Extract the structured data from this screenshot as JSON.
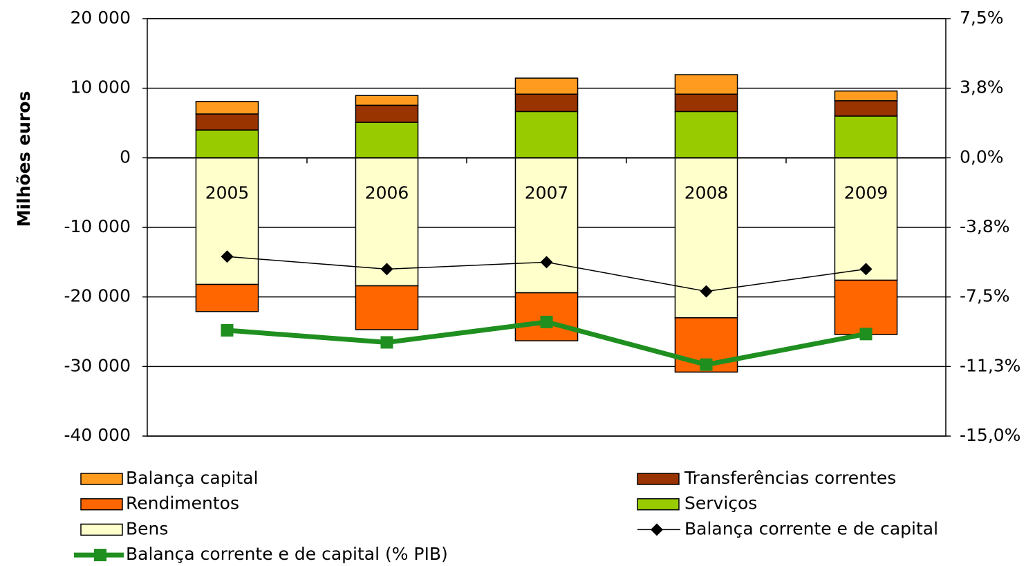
{
  "chart_data": {
    "type": "bar",
    "ylabel": "Milhões euros",
    "categories": [
      "2005",
      "2006",
      "2007",
      "2008",
      "2009"
    ],
    "series": [
      {
        "name": "Balança capital",
        "color": "#ff9c1f",
        "values": [
          1800,
          1400,
          2300,
          2800,
          1400
        ]
      },
      {
        "name": "Transferências correntes",
        "color": "#993300",
        "values": [
          2300,
          2450,
          2500,
          2500,
          2200
        ]
      },
      {
        "name": "Rendimentos",
        "color": "#ff6600",
        "values": [
          -3900,
          -6300,
          -6900,
          -7800,
          -7800
        ]
      },
      {
        "name": "Serviços",
        "color": "#99cc00",
        "values": [
          4000,
          5100,
          6650,
          6650,
          6000
        ]
      },
      {
        "name": "Bens",
        "color": "#ffffcc",
        "values": [
          -18200,
          -18400,
          -19400,
          -23000,
          -17600
        ]
      },
      {
        "name": "Balança corrente e de capital",
        "type": "line",
        "color": "#000000",
        "marker": "diamond",
        "values": [
          -14200,
          -16000,
          -15000,
          -19200,
          -16000
        ]
      },
      {
        "name": "Balança corrente e de capital (% PIB)",
        "type": "line",
        "axis": "y2",
        "color": "#1f8f1f",
        "marker": "square",
        "values": [
          -9.3,
          -9.95,
          -8.85,
          -11.15,
          -9.5
        ]
      }
    ],
    "ylim": [
      -40000,
      20000
    ],
    "yticks": [
      {
        "value": -40000,
        "label": "-40 000"
      },
      {
        "value": -30000,
        "label": "-30 000"
      },
      {
        "value": -20000,
        "label": "-20 000"
      },
      {
        "value": -10000,
        "label": "-10 000"
      },
      0,
      {
        "value": 10000,
        "label": "10 000"
      },
      {
        "value": 20000,
        "label": "20 000"
      }
    ],
    "y2lim": [
      -15,
      7.5
    ],
    "y2ticks": [
      {
        "value": -15,
        "label": "-15,0%"
      },
      {
        "value": -11.25,
        "label": "-11,3%"
      },
      {
        "value": -7.5,
        "label": "-7,5%"
      },
      {
        "value": -3.75,
        "label": "-3,8%"
      },
      {
        "value": 0,
        "label": "0,0%"
      },
      {
        "value": 3.75,
        "label": "3,8%"
      },
      {
        "value": 7.5,
        "label": "7,5%"
      }
    ],
    "grid": true,
    "legend": "bottom"
  }
}
